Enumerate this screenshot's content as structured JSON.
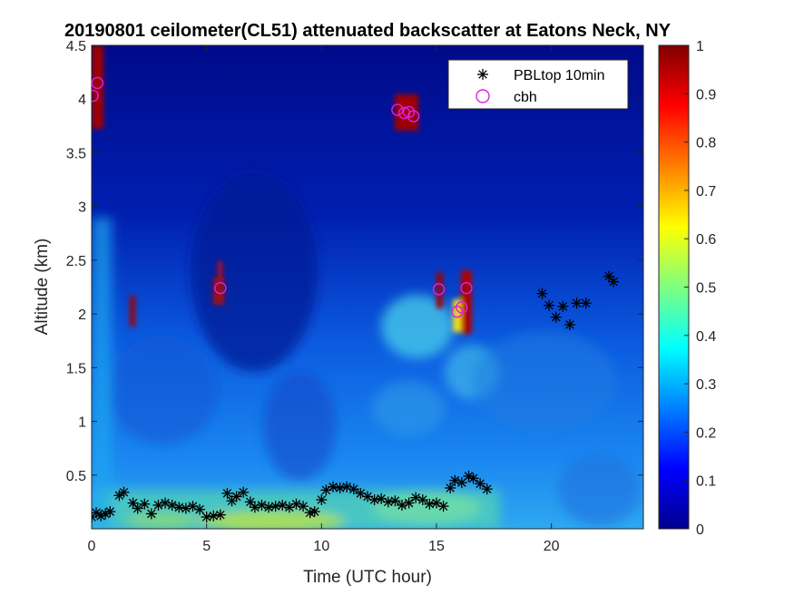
{
  "chart_data": {
    "type": "heatmap",
    "title": "20190801 ceilometer(CL51) attenuated backscatter at Eatons Neck, NY",
    "xlabel": "Time (UTC hour)",
    "ylabel": "Altitude (km)",
    "xlim": [
      0,
      24
    ],
    "ylim": [
      0.0,
      4.5
    ],
    "xticks": [
      0,
      5,
      10,
      15,
      20
    ],
    "xtick_labels": [
      "0",
      "5",
      "10",
      "15",
      "20"
    ],
    "yticks": [
      0.5,
      1,
      1.5,
      2,
      2.5,
      3,
      3.5,
      4,
      4.5
    ],
    "ytick_labels": [
      "0.5",
      "1",
      "1.5",
      "2",
      "2.5",
      "3",
      "3.5",
      "4",
      "4.5"
    ],
    "colorbar": {
      "colormap": "jet",
      "range": [
        0,
        1
      ],
      "ticks": [
        0,
        0.1,
        0.2,
        0.3,
        0.4,
        0.5,
        0.6,
        0.7,
        0.8,
        0.9,
        1
      ],
      "tick_labels": [
        "0",
        "0.1",
        "0.2",
        "0.3",
        "0.4",
        "0.5",
        "0.6",
        "0.7",
        "0.8",
        "0.9",
        "1"
      ]
    },
    "legend": {
      "location": "top-right",
      "entries": [
        {
          "label": "PBLtop 10min",
          "marker": "asterisk",
          "color": "#000000"
        },
        {
          "label": "cbh",
          "marker": "circle",
          "color": "#e020e0"
        }
      ]
    },
    "series": [
      {
        "name": "PBLtop 10min",
        "x": [
          0.0,
          0.2,
          0.4,
          0.6,
          0.8,
          1.2,
          1.4,
          1.8,
          2.0,
          2.3,
          2.6,
          2.9,
          3.2,
          3.5,
          3.8,
          4.1,
          4.4,
          4.7,
          5.0,
          5.3,
          5.6,
          5.9,
          6.1,
          6.3,
          6.6,
          6.9,
          7.1,
          7.4,
          7.7,
          8.0,
          8.3,
          8.6,
          8.9,
          9.2,
          9.5,
          9.7,
          10.0,
          10.2,
          10.5,
          10.8,
          11.1,
          11.4,
          11.7,
          12.0,
          12.3,
          12.6,
          12.9,
          13.2,
          13.5,
          13.8,
          14.1,
          14.4,
          14.7,
          15.0,
          15.3,
          15.6,
          15.8,
          16.1,
          16.4,
          16.6,
          16.9,
          17.2,
          19.6,
          19.9,
          20.2,
          20.5,
          20.8,
          21.1,
          21.5,
          22.5,
          22.7
        ],
        "y": [
          0.11,
          0.15,
          0.12,
          0.14,
          0.16,
          0.31,
          0.34,
          0.24,
          0.19,
          0.23,
          0.14,
          0.22,
          0.24,
          0.22,
          0.2,
          0.19,
          0.21,
          0.18,
          0.11,
          0.12,
          0.13,
          0.33,
          0.26,
          0.3,
          0.34,
          0.25,
          0.2,
          0.22,
          0.2,
          0.21,
          0.22,
          0.2,
          0.23,
          0.21,
          0.15,
          0.16,
          0.27,
          0.36,
          0.39,
          0.38,
          0.39,
          0.37,
          0.33,
          0.3,
          0.27,
          0.28,
          0.25,
          0.26,
          0.22,
          0.24,
          0.29,
          0.27,
          0.23,
          0.24,
          0.21,
          0.38,
          0.45,
          0.43,
          0.49,
          0.47,
          0.42,
          0.37,
          2.19,
          2.08,
          1.97,
          2.07,
          1.9,
          2.1,
          2.1,
          2.35,
          2.3
        ]
      },
      {
        "name": "cbh",
        "x": [
          0.05,
          0.25,
          5.6,
          13.3,
          13.6,
          13.8,
          14.0,
          15.1,
          15.9,
          16.1,
          16.3
        ],
        "y": [
          4.03,
          4.15,
          2.24,
          3.9,
          3.87,
          3.88,
          3.84,
          2.23,
          2.02,
          2.06,
          2.24
        ]
      }
    ]
  }
}
